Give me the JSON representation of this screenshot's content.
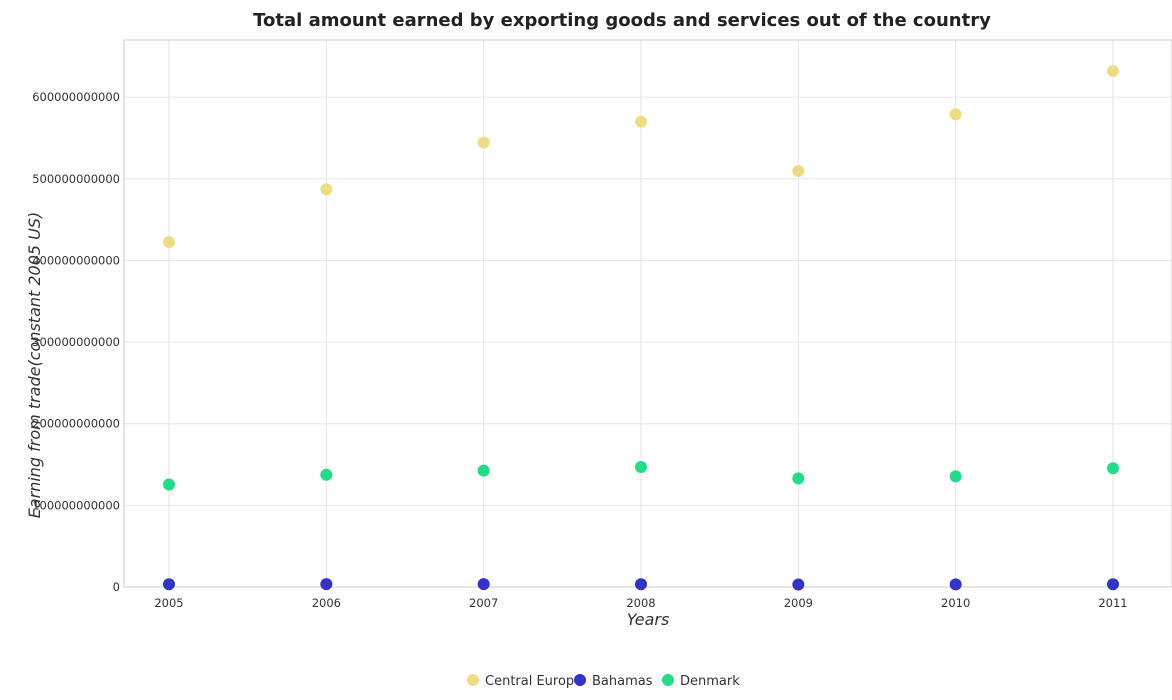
{
  "chart_data": {
    "type": "scatter",
    "title": "Total amount earned by exporting goods and services out of the country",
    "xlabel": "Years",
    "ylabel": "Earning from trade(constant 2005 US)",
    "categories": [
      "2005",
      "2006",
      "2007",
      "2008",
      "2009",
      "2010",
      "2011"
    ],
    "ylim": [
      0,
      670000000000
    ],
    "yticks": [
      0,
      100000000000,
      200000000000,
      300000000000,
      400000000000,
      500000000000,
      600000000000
    ],
    "ytick_labels": [
      "0",
      "100000000000",
      "200000000000",
      "300000000000",
      "400000000000",
      "500000000000",
      "600000000000"
    ],
    "grid": true,
    "legend_position": "bottom-center",
    "series": [
      {
        "name": "Central Europe",
        "color": "#eedc82",
        "values": [
          422500000000,
          487000000000,
          544500000000,
          570000000000,
          509500000000,
          579000000000,
          632000000000
        ]
      },
      {
        "name": "Bahamas",
        "color": "#3333cc",
        "values": [
          3400000000,
          3500000000,
          3500000000,
          3400000000,
          3100000000,
          3200000000,
          3400000000
        ]
      },
      {
        "name": "Denmark",
        "color": "#22dd88",
        "values": [
          125500000000,
          137500000000,
          142500000000,
          147000000000,
          133000000000,
          135500000000,
          145500000000
        ]
      }
    ]
  }
}
